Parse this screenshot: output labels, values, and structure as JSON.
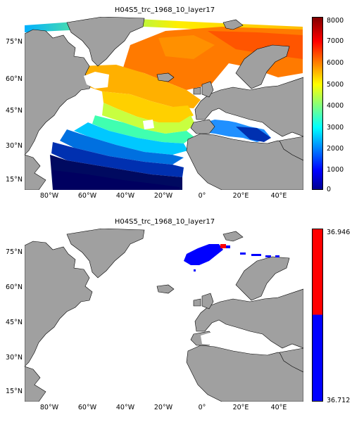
{
  "top": {
    "title": "H04S5_trc_1968_10_layer17",
    "lat_labels": [
      "75°N",
      "60°N",
      "45°N",
      "30°N",
      "15°N"
    ],
    "lon_labels": [
      "80°W",
      "60°W",
      "40°W",
      "20°W",
      "0°",
      "20°E",
      "40°E"
    ],
    "colorbar": {
      "ticks": [
        "8000",
        "7000",
        "6000",
        "5000",
        "4000",
        "3000",
        "2000",
        "1000",
        "0"
      ],
      "range": [
        0,
        8000
      ],
      "colormap": "jet"
    }
  },
  "bottom": {
    "title": "H04S5_trc_1968_10_layer17",
    "lat_labels": [
      "75°N",
      "60°N",
      "45°N",
      "30°N",
      "15°N"
    ],
    "lon_labels": [
      "80°W",
      "60°W",
      "40°W",
      "20°W",
      "0°",
      "20°E",
      "40°E"
    ],
    "colorbar": {
      "ticks": [
        "36.946",
        "36.712"
      ],
      "range": [
        36.712,
        36.946
      ],
      "colors": [
        "#ff0000",
        "#0000ff"
      ]
    }
  },
  "colors": {
    "land": "#a0a0a0",
    "ocean_nodata": "#ffffff",
    "coast": "#000000"
  }
}
